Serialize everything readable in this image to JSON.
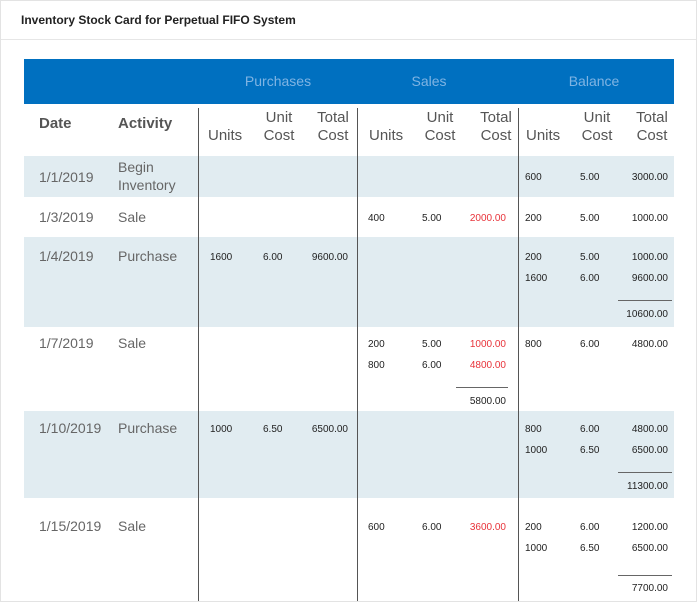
{
  "title": "Inventory Stock Card for Perpetual FIFO System",
  "colors": {
    "band": "#0070c0",
    "shade": "#e1ecf1",
    "sales_total": "#e8333a"
  },
  "groups": {
    "purchases": "Purchases",
    "sales": "Sales",
    "balance": "Balance"
  },
  "headers": {
    "date": "Date",
    "activity": "Activity",
    "units": "Units",
    "unit_cost_1": "Unit",
    "unit_cost_2": "Cost",
    "total_cost_1": "Total",
    "total_cost_2": "Cost"
  },
  "rows": [
    {
      "date": "1/1/2019",
      "activity": [
        "Begin",
        "Inventory"
      ],
      "purchases": [],
      "sales": [],
      "sales_total": "",
      "balance": [
        {
          "units": "600",
          "unit_cost": "5.00",
          "total": "3000.00"
        }
      ],
      "balance_total": ""
    },
    {
      "date": "1/3/2019",
      "activity": [
        "Sale"
      ],
      "purchases": [],
      "sales": [
        {
          "units": "400",
          "unit_cost": "5.00",
          "total": "2000.00"
        }
      ],
      "sales_total": "",
      "balance": [
        {
          "units": "200",
          "unit_cost": "5.00",
          "total": "1000.00"
        }
      ],
      "balance_total": ""
    },
    {
      "date": "1/4/2019",
      "activity": [
        "Purchase"
      ],
      "purchases": [
        {
          "units": "1600",
          "unit_cost": "6.00",
          "total": "9600.00"
        }
      ],
      "sales": [],
      "sales_total": "",
      "balance": [
        {
          "units": "200",
          "unit_cost": "5.00",
          "total": "1000.00"
        },
        {
          "units": "1600",
          "unit_cost": "6.00",
          "total": "9600.00"
        }
      ],
      "balance_total": "10600.00"
    },
    {
      "date": "1/7/2019",
      "activity": [
        "Sale"
      ],
      "purchases": [],
      "sales": [
        {
          "units": "200",
          "unit_cost": "5.00",
          "total": "1000.00"
        },
        {
          "units": "800",
          "unit_cost": "6.00",
          "total": "4800.00"
        }
      ],
      "sales_total": "5800.00",
      "balance": [
        {
          "units": "800",
          "unit_cost": "6.00",
          "total": "4800.00"
        }
      ],
      "balance_total": ""
    },
    {
      "date": "1/10/2019",
      "activity": [
        "Purchase"
      ],
      "purchases": [
        {
          "units": "1000",
          "unit_cost": "6.50",
          "total": "6500.00"
        }
      ],
      "sales": [],
      "sales_total": "",
      "balance": [
        {
          "units": "800",
          "unit_cost": "6.00",
          "total": "4800.00"
        },
        {
          "units": "1000",
          "unit_cost": "6.50",
          "total": "6500.00"
        }
      ],
      "balance_total": "11300.00"
    },
    {
      "date": "1/15/2019",
      "activity": [
        "Sale"
      ],
      "purchases": [],
      "sales": [
        {
          "units": "600",
          "unit_cost": "6.00",
          "total": "3600.00"
        }
      ],
      "sales_total": "",
      "balance": [
        {
          "units": "200",
          "unit_cost": "6.00",
          "total": "1200.00"
        },
        {
          "units": "1000",
          "unit_cost": "6.50",
          "total": "6500.00"
        }
      ],
      "balance_total": "7700.00"
    }
  ]
}
